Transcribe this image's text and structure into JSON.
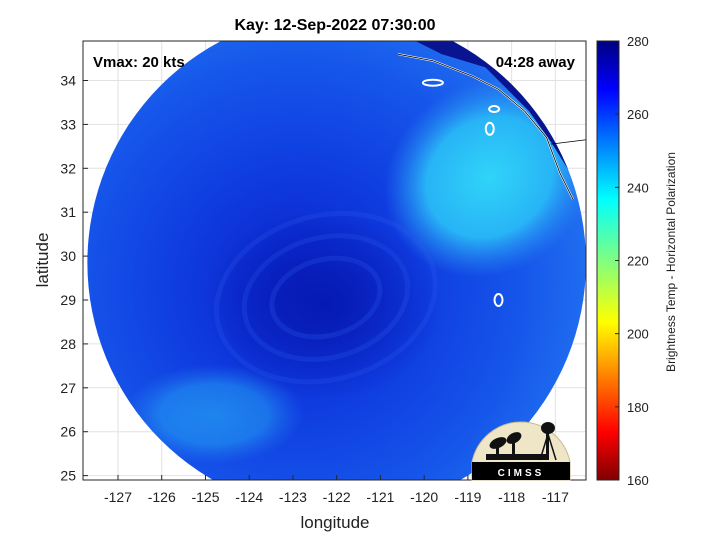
{
  "chart_data": {
    "type": "heatmap",
    "title": "Kay: 12-Sep-2022 07:30:00",
    "xlabel": "longitude",
    "ylabel": "latitude",
    "xlim": [
      -127.8,
      -116.3
    ],
    "ylim": [
      24.9,
      34.9
    ],
    "x_ticks": [
      -127,
      -126,
      -125,
      -124,
      -123,
      -122,
      -121,
      -120,
      -119,
      -118,
      -117
    ],
    "y_ticks": [
      25,
      26,
      27,
      28,
      29,
      30,
      31,
      32,
      33,
      34
    ],
    "grid": true,
    "colorbar": {
      "label": "Brightness Temp - Horizontal Polarization",
      "range": [
        160,
        280
      ],
      "ticks": [
        160,
        180,
        200,
        220,
        240,
        260,
        280
      ],
      "colormap": "jet"
    },
    "annotations": {
      "top_left": "Vmax: 20 kts",
      "top_right": "04:28 away"
    },
    "logo_text": "CIMSS",
    "swath": {
      "center_lon": -122.0,
      "center_lat": 29.85,
      "radius_deg": 5.7,
      "background_value": 262,
      "cold_core": {
        "lon": -122.3,
        "lat": 28.9,
        "value": 268
      },
      "clear_sky_region": {
        "lon": -118.5,
        "lat": 31.8,
        "value": 243
      },
      "coastal_land_value": 276
    }
  }
}
